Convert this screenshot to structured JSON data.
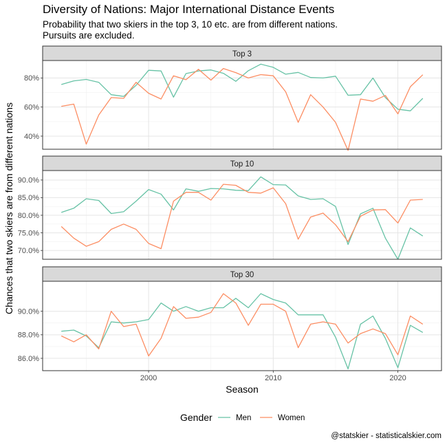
{
  "figure": {
    "title": "Diversity of Nations: Major International Distance Events",
    "subtitle_lines": [
      "Probability that two skiers in the top 3, 10 etc. are from different nations.",
      "Pursuits are excluded."
    ],
    "caption": "@statskier - statisticalskier.com"
  },
  "chart_data": {
    "type": "line",
    "xlabel": "Season",
    "ylabel": "Chances that two skiers are from different nations",
    "x_ticks": [
      2000,
      2010,
      2020
    ],
    "x": [
      1993,
      1994,
      1995,
      1996,
      1997,
      1998,
      1999,
      2000,
      2001,
      2002,
      2003,
      2004,
      2005,
      2006,
      2007,
      2008,
      2009,
      2010,
      2011,
      2012,
      2013,
      2014,
      2015,
      2016,
      2017,
      2018,
      2019,
      2020,
      2021,
      2022
    ],
    "legend": {
      "title": "Gender",
      "position": "bottom"
    },
    "series_colors": {
      "Men": "#66c2a5",
      "Women": "#fc8d62"
    },
    "grid": true,
    "panels": [
      {
        "strip": "Top 3",
        "ylim": [
          0.31,
          0.92
        ],
        "y_ticks": [
          0.4,
          0.6,
          0.8
        ],
        "y_tick_labels": [
          "40%",
          "60%",
          "80%"
        ],
        "series": [
          {
            "name": "Men",
            "values": [
              0.755,
              0.78,
              0.79,
              0.77,
              0.685,
              0.673,
              0.75,
              0.853,
              0.848,
              0.668,
              0.83,
              0.848,
              0.855,
              0.832,
              0.777,
              0.85,
              0.895,
              0.873,
              0.826,
              0.838,
              0.803,
              0.8,
              0.812,
              0.681,
              0.685,
              0.8,
              0.665,
              0.585,
              0.574,
              0.66
            ]
          },
          {
            "name": "Women",
            "values": [
              0.605,
              0.62,
              0.345,
              0.545,
              0.665,
              0.66,
              0.77,
              0.695,
              0.655,
              0.815,
              0.788,
              0.86,
              0.785,
              0.865,
              0.837,
              0.8,
              0.823,
              0.815,
              0.705,
              0.495,
              0.685,
              0.6,
              0.495,
              0.302,
              0.655,
              0.64,
              0.68,
              0.553,
              0.74,
              0.822
            ]
          }
        ]
      },
      {
        "strip": "Top 10",
        "ylim": [
          0.675,
          0.927
        ],
        "y_ticks": [
          0.7,
          0.75,
          0.8,
          0.85,
          0.9
        ],
        "y_tick_labels": [
          "70.0%",
          "75.0%",
          "80.0%",
          "85.0%",
          "90.0%"
        ],
        "series": [
          {
            "name": "Men",
            "values": [
              0.808,
              0.82,
              0.847,
              0.842,
              0.805,
              0.81,
              0.84,
              0.873,
              0.86,
              0.815,
              0.875,
              0.868,
              0.876,
              0.875,
              0.871,
              0.87,
              0.909,
              0.887,
              0.886,
              0.855,
              0.845,
              0.847,
              0.825,
              0.717,
              0.804,
              0.82,
              0.735,
              0.675,
              0.764,
              0.741
            ]
          },
          {
            "name": "Women",
            "values": [
              0.768,
              0.735,
              0.712,
              0.725,
              0.76,
              0.775,
              0.76,
              0.72,
              0.705,
              0.84,
              0.865,
              0.865,
              0.843,
              0.888,
              0.885,
              0.865,
              0.863,
              0.878,
              0.833,
              0.732,
              0.795,
              0.806,
              0.773,
              0.725,
              0.797,
              0.815,
              0.816,
              0.778,
              0.843,
              0.845
            ]
          }
        ]
      },
      {
        "strip": "Top 30",
        "ylim": [
          0.8495,
          0.9255
        ],
        "y_ticks": [
          0.86,
          0.88,
          0.9
        ],
        "y_tick_labels": [
          "86.0%",
          "88.0%",
          "90.0%"
        ],
        "series": [
          {
            "name": "Men",
            "values": [
              0.883,
              0.884,
              0.879,
              0.869,
              0.891,
              0.89,
              0.891,
              0.893,
              0.907,
              0.9,
              0.904,
              0.9,
              0.903,
              0.903,
              0.911,
              0.903,
              0.915,
              0.91,
              0.907,
              0.897,
              0.897,
              0.897,
              0.878,
              0.851,
              0.889,
              0.896,
              0.877,
              0.852,
              0.888,
              0.882
            ]
          },
          {
            "name": "Women",
            "values": [
              0.879,
              0.874,
              0.88,
              0.868,
              0.9,
              0.887,
              0.889,
              0.862,
              0.877,
              0.904,
              0.894,
              0.895,
              0.899,
              0.915,
              0.907,
              0.888,
              0.906,
              0.906,
              0.9,
              0.869,
              0.889,
              0.891,
              0.889,
              0.873,
              0.881,
              0.885,
              0.881,
              0.863,
              0.896,
              0.889
            ]
          }
        ]
      }
    ]
  }
}
